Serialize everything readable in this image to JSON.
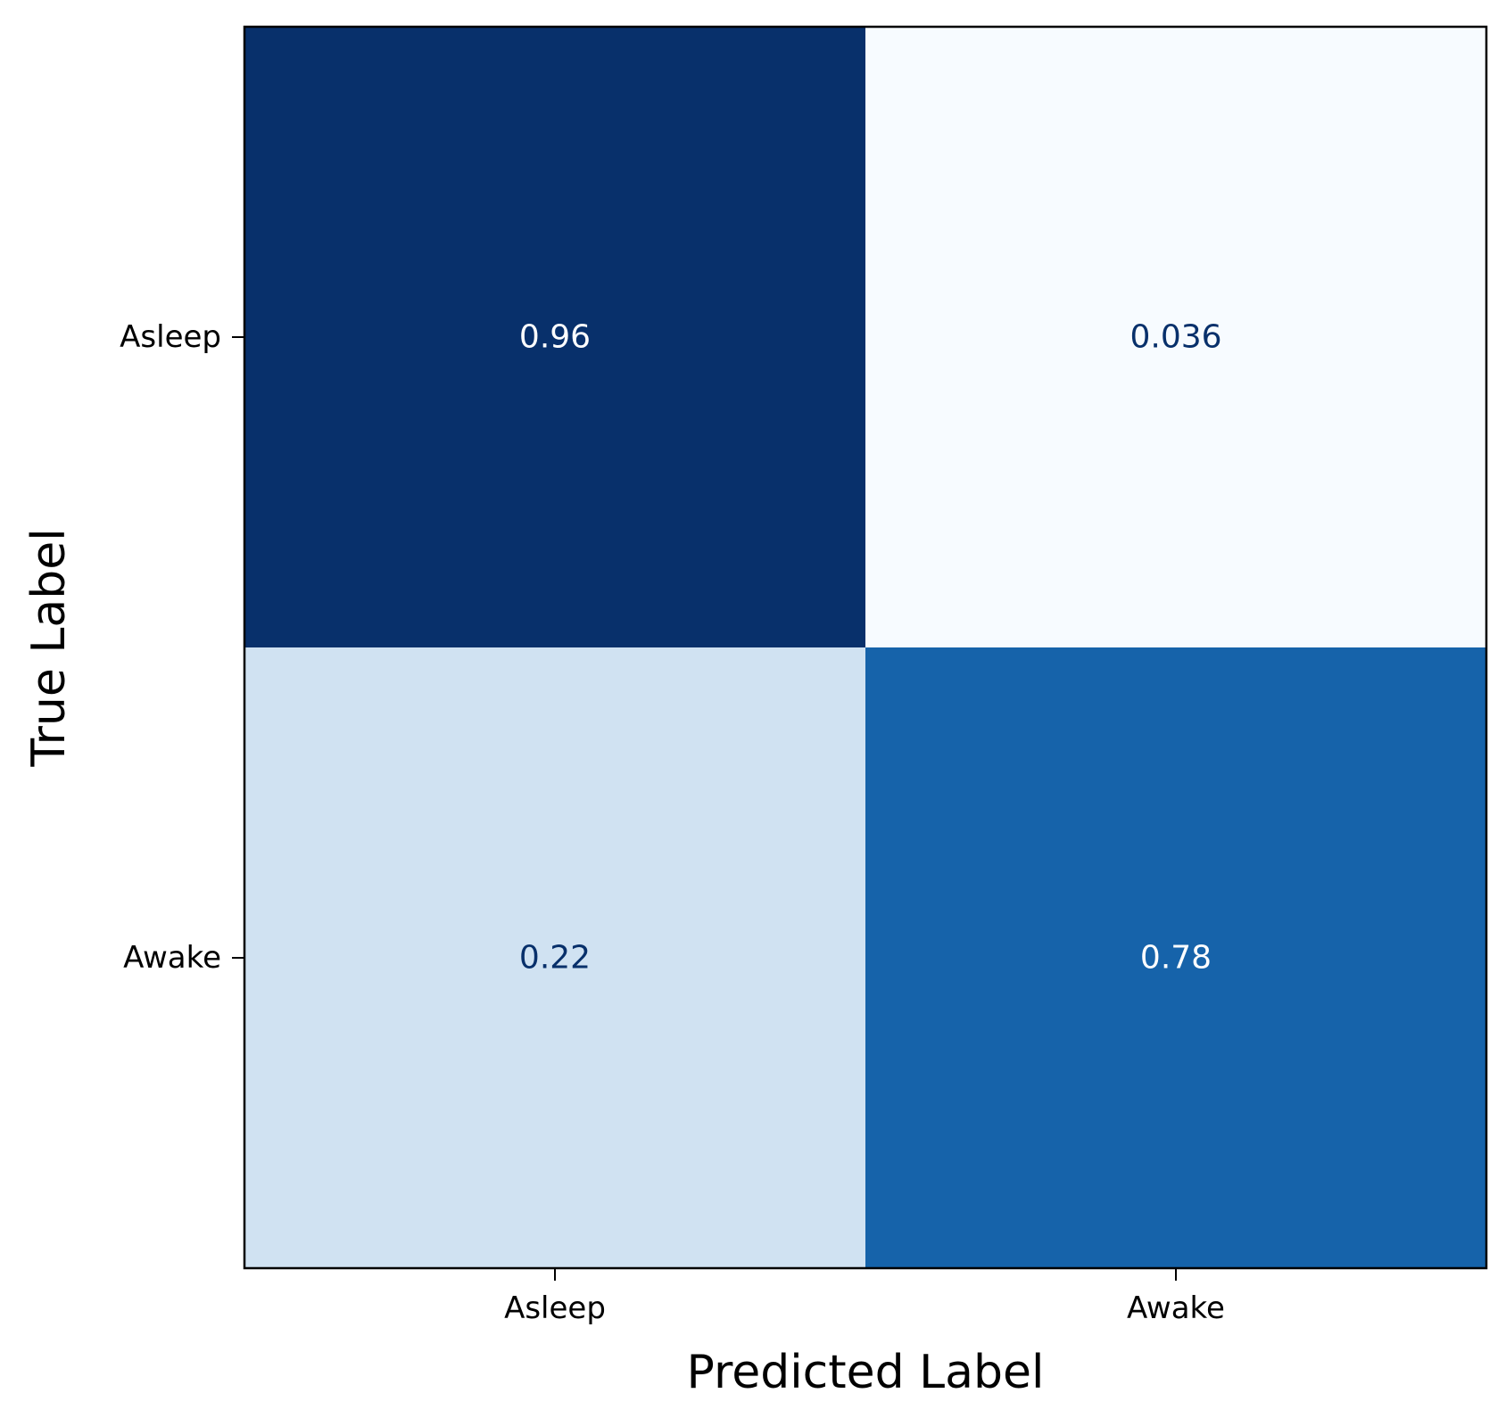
{
  "chart_data": {
    "type": "heatmap",
    "title": "",
    "xlabel": "Predicted Label",
    "ylabel": "True Label",
    "x_categories": [
      "Asleep",
      "Awake"
    ],
    "y_categories": [
      "Asleep",
      "Awake"
    ],
    "values": [
      [
        0.96,
        0.036
      ],
      [
        0.22,
        0.78
      ]
    ],
    "value_labels": [
      [
        "0.96",
        "0.036"
      ],
      [
        "0.22",
        "0.78"
      ]
    ],
    "colormap": "Blues",
    "colors": {
      "low": "#f7fbff",
      "high": "#08306b",
      "text_dark": "#08306b",
      "text_light": "#ffffff",
      "frame": "#000000"
    },
    "colorbar": false,
    "grid": false
  }
}
